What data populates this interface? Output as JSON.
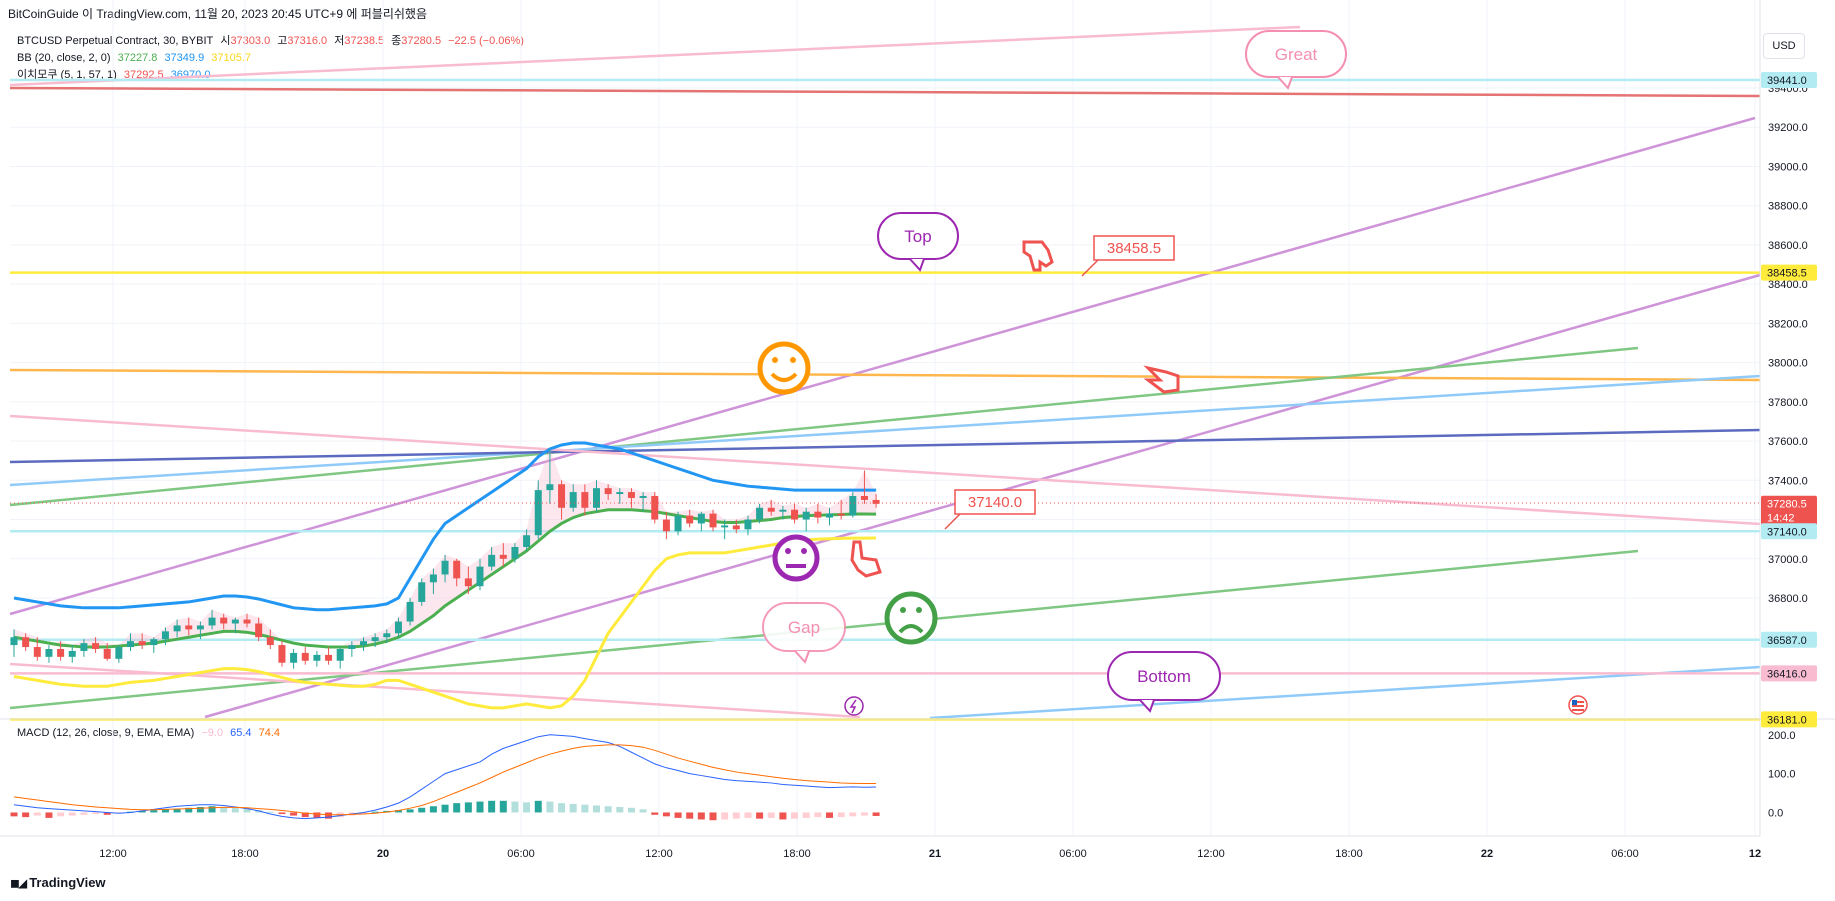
{
  "header": {
    "publish_line": "BitCoinGuide 이 TradingView.com, 11월 20, 2023 20:45 UTC+9 에 퍼블리쉬했음"
  },
  "legend": {
    "symbol": "BTCUSD Perpetual Contract, 30, BYBIT",
    "open_label": "시",
    "open": "37303.0",
    "high_label": "고",
    "high": "37316.0",
    "low_label": "저",
    "low": "37238.5",
    "close_label": "종",
    "close": "37280.5",
    "change": "−22.5 (−0.06%)",
    "bb_label": "BB (20, close, 2, 0)",
    "bb_basis": "37227.8",
    "bb_upper": "37349.9",
    "bb_lower": "37105.7",
    "ichi_label": "이치모쿠 (5, 1, 57, 1)",
    "ichi_a": "37292.5",
    "ichi_b": "36970.0"
  },
  "macd_legend": {
    "label": "MACD (12, 26, close, 9, EMA, EMA)",
    "hist": "−9.0",
    "macd": "65.4",
    "signal": "74.4"
  },
  "currency": "USD",
  "brand": "TradingView",
  "colors": {
    "up": "#26a69a",
    "down": "#ef5350",
    "bb_basis": "#4caf50",
    "bb_upper": "#2196f3",
    "bb_lower": "#ffeb3b",
    "macd": "#2962ff",
    "signal": "#ff6d00",
    "yellow_line": "#ffeb3b",
    "orange_line": "#ff9800",
    "purple_line": "#ba68c8",
    "pink_line": "#f8bbd0"
  },
  "chart_data": {
    "type": "candlestick",
    "interval": "30",
    "price_axis": {
      "min": 36100,
      "max": 39550,
      "ticks": [
        39400,
        39200,
        39000,
        38800,
        38600,
        38400,
        38200,
        38000,
        37800,
        37600,
        37400,
        37200,
        37000,
        36800
      ]
    },
    "time_axis": {
      "labels": [
        "12:00",
        "18:00",
        "20",
        "06:00",
        "12:00",
        "18:00",
        "21",
        "06:00",
        "12:00",
        "18:00",
        "22",
        "06:00",
        "12"
      ]
    },
    "price_labels": [
      {
        "value": 39441.0,
        "text": "39441.0",
        "color": "#b2ebf2",
        "text_color": "#131722"
      },
      {
        "value": 38458.5,
        "text": "38458.5",
        "color": "#ffeb3b",
        "text_color": "#131722"
      },
      {
        "value": 37280.5,
        "text": "37280.5",
        "sub": "14:42",
        "color": "#ef5350",
        "text_color": "#ffffff"
      },
      {
        "value": 37140.0,
        "text": "37140.0",
        "color": "#b2ebf2",
        "text_color": "#131722"
      },
      {
        "value": 36587.0,
        "text": "36587.0",
        "color": "#b2ebf2",
        "text_color": "#131722"
      },
      {
        "value": 36416.0,
        "text": "36416.0",
        "color": "#f8bbd0",
        "text_color": "#131722"
      },
      {
        "value": 36181.0,
        "text": "36181.0",
        "color": "#ffeb3b",
        "text_color": "#131722"
      }
    ],
    "horizontal_lines": [
      {
        "value": 39441.0,
        "color": "#b2ebf2"
      },
      {
        "value": 38458.5,
        "color": "#ffeb3b"
      },
      {
        "value": 37140.0,
        "color": "#b2ebf2"
      },
      {
        "value": 36587.0,
        "color": "#b2ebf2"
      },
      {
        "value": 36416.0,
        "color": "#f8bbd0"
      },
      {
        "value": 36181.0,
        "color": "#ffeb3b"
      }
    ],
    "annotations": [
      {
        "text": "Great",
        "color": "#f48fb1"
      },
      {
        "text": "Top",
        "color": "#9c27b0"
      },
      {
        "text": "Gap",
        "color": "#f48fb1"
      },
      {
        "text": "Bottom",
        "color": "#9c27b0"
      },
      {
        "text": "38458.5",
        "color": "#ef5350"
      },
      {
        "text": "37140.0",
        "color": "#ef5350"
      }
    ],
    "macd_axis": {
      "ticks": [
        200.0,
        100.0,
        0.0
      ],
      "tick_labels": [
        "200.0",
        "100.0",
        "0.0"
      ],
      "min": -40,
      "max": 220
    },
    "candles": [
      {
        "o": 36560,
        "h": 36640,
        "l": 36500,
        "c": 36600
      },
      {
        "o": 36600,
        "h": 36620,
        "l": 36530,
        "c": 36550
      },
      {
        "o": 36550,
        "h": 36600,
        "l": 36480,
        "c": 36500
      },
      {
        "o": 36500,
        "h": 36560,
        "l": 36470,
        "c": 36540
      },
      {
        "o": 36540,
        "h": 36580,
        "l": 36480,
        "c": 36500
      },
      {
        "o": 36500,
        "h": 36560,
        "l": 36470,
        "c": 36530
      },
      {
        "o": 36530,
        "h": 36590,
        "l": 36500,
        "c": 36570
      },
      {
        "o": 36570,
        "h": 36600,
        "l": 36520,
        "c": 36540
      },
      {
        "o": 36540,
        "h": 36570,
        "l": 36480,
        "c": 36490
      },
      {
        "o": 36490,
        "h": 36560,
        "l": 36470,
        "c": 36550
      },
      {
        "o": 36550,
        "h": 36620,
        "l": 36530,
        "c": 36580
      },
      {
        "o": 36580,
        "h": 36620,
        "l": 36540,
        "c": 36560
      },
      {
        "o": 36560,
        "h": 36600,
        "l": 36520,
        "c": 36590
      },
      {
        "o": 36590,
        "h": 36650,
        "l": 36560,
        "c": 36630
      },
      {
        "o": 36630,
        "h": 36690,
        "l": 36600,
        "c": 36660
      },
      {
        "o": 36660,
        "h": 36700,
        "l": 36610,
        "c": 36640
      },
      {
        "o": 36640,
        "h": 36680,
        "l": 36590,
        "c": 36660
      },
      {
        "o": 36660,
        "h": 36740,
        "l": 36640,
        "c": 36700
      },
      {
        "o": 36700,
        "h": 36720,
        "l": 36640,
        "c": 36670
      },
      {
        "o": 36670,
        "h": 36700,
        "l": 36620,
        "c": 36690
      },
      {
        "o": 36690,
        "h": 36720,
        "l": 36650,
        "c": 36670
      },
      {
        "o": 36670,
        "h": 36700,
        "l": 36580,
        "c": 36600
      },
      {
        "o": 36600,
        "h": 36640,
        "l": 36540,
        "c": 36560
      },
      {
        "o": 36560,
        "h": 36580,
        "l": 36450,
        "c": 36470
      },
      {
        "o": 36470,
        "h": 36540,
        "l": 36440,
        "c": 36520
      },
      {
        "o": 36520,
        "h": 36550,
        "l": 36460,
        "c": 36480
      },
      {
        "o": 36480,
        "h": 36530,
        "l": 36450,
        "c": 36510
      },
      {
        "o": 36510,
        "h": 36550,
        "l": 36460,
        "c": 36480
      },
      {
        "o": 36480,
        "h": 36550,
        "l": 36440,
        "c": 36540
      },
      {
        "o": 36540,
        "h": 36580,
        "l": 36500,
        "c": 36560
      },
      {
        "o": 36560,
        "h": 36600,
        "l": 36530,
        "c": 36580
      },
      {
        "o": 36580,
        "h": 36620,
        "l": 36550,
        "c": 36600
      },
      {
        "o": 36600,
        "h": 36640,
        "l": 36570,
        "c": 36620
      },
      {
        "o": 36620,
        "h": 36700,
        "l": 36600,
        "c": 36680
      },
      {
        "o": 36680,
        "h": 36800,
        "l": 36660,
        "c": 36780
      },
      {
        "o": 36780,
        "h": 36900,
        "l": 36760,
        "c": 36880
      },
      {
        "o": 36880,
        "h": 36950,
        "l": 36820,
        "c": 36920
      },
      {
        "o": 36920,
        "h": 37020,
        "l": 36880,
        "c": 36990
      },
      {
        "o": 36990,
        "h": 37000,
        "l": 36860,
        "c": 36900
      },
      {
        "o": 36900,
        "h": 36960,
        "l": 36820,
        "c": 36860
      },
      {
        "o": 36860,
        "h": 37000,
        "l": 36840,
        "c": 36960
      },
      {
        "o": 36960,
        "h": 37060,
        "l": 36940,
        "c": 37020
      },
      {
        "o": 37020,
        "h": 37080,
        "l": 36960,
        "c": 37000
      },
      {
        "o": 37000,
        "h": 37080,
        "l": 36980,
        "c": 37060
      },
      {
        "o": 37060,
        "h": 37150,
        "l": 37040,
        "c": 37120
      },
      {
        "o": 37120,
        "h": 37400,
        "l": 37100,
        "c": 37350
      },
      {
        "o": 37350,
        "h": 37560,
        "l": 37280,
        "c": 37380
      },
      {
        "o": 37380,
        "h": 37400,
        "l": 37200,
        "c": 37260
      },
      {
        "o": 37260,
        "h": 37380,
        "l": 37240,
        "c": 37340
      },
      {
        "o": 37340,
        "h": 37380,
        "l": 37220,
        "c": 37260
      },
      {
        "o": 37260,
        "h": 37400,
        "l": 37240,
        "c": 37360
      },
      {
        "o": 37360,
        "h": 37380,
        "l": 37300,
        "c": 37330
      },
      {
        "o": 37330,
        "h": 37360,
        "l": 37280,
        "c": 37340
      },
      {
        "o": 37340,
        "h": 37360,
        "l": 37260,
        "c": 37310
      },
      {
        "o": 37310,
        "h": 37340,
        "l": 37240,
        "c": 37320
      },
      {
        "o": 37320,
        "h": 37340,
        "l": 37180,
        "c": 37200
      },
      {
        "o": 37200,
        "h": 37240,
        "l": 37100,
        "c": 37140
      },
      {
        "o": 37140,
        "h": 37240,
        "l": 37120,
        "c": 37220
      },
      {
        "o": 37220,
        "h": 37250,
        "l": 37160,
        "c": 37180
      },
      {
        "o": 37180,
        "h": 37240,
        "l": 37140,
        "c": 37230
      },
      {
        "o": 37230,
        "h": 37250,
        "l": 37140,
        "c": 37160
      },
      {
        "o": 37160,
        "h": 37200,
        "l": 37100,
        "c": 37170
      },
      {
        "o": 37170,
        "h": 37200,
        "l": 37130,
        "c": 37150
      },
      {
        "o": 37150,
        "h": 37220,
        "l": 37120,
        "c": 37200
      },
      {
        "o": 37200,
        "h": 37280,
        "l": 37180,
        "c": 37260
      },
      {
        "o": 37260,
        "h": 37300,
        "l": 37220,
        "c": 37240
      },
      {
        "o": 37240,
        "h": 37270,
        "l": 37200,
        "c": 37250
      },
      {
        "o": 37250,
        "h": 37280,
        "l": 37180,
        "c": 37200
      },
      {
        "o": 37200,
        "h": 37260,
        "l": 37140,
        "c": 37240
      },
      {
        "o": 37240,
        "h": 37280,
        "l": 37180,
        "c": 37210
      },
      {
        "o": 37210,
        "h": 37260,
        "l": 37170,
        "c": 37230
      },
      {
        "o": 37230,
        "h": 37300,
        "l": 37200,
        "c": 37220
      },
      {
        "o": 37220,
        "h": 37340,
        "l": 37210,
        "c": 37320
      },
      {
        "o": 37320,
        "h": 37450,
        "l": 37280,
        "c": 37300
      },
      {
        "o": 37300,
        "h": 37330,
        "l": 37260,
        "c": 37280
      }
    ],
    "macd_hist": [
      -10,
      -12,
      -8,
      -14,
      -10,
      -8,
      -6,
      -4,
      -6,
      -2,
      2,
      4,
      6,
      8,
      10,
      12,
      14,
      16,
      14,
      12,
      10,
      6,
      2,
      -4,
      -8,
      -12,
      -14,
      -16,
      -12,
      -8,
      -4,
      2,
      4,
      6,
      8,
      12,
      16,
      20,
      24,
      26,
      28,
      30,
      30,
      28,
      26,
      30,
      28,
      24,
      22,
      20,
      18,
      16,
      14,
      12,
      8,
      -6,
      -10,
      -14,
      -16,
      -18,
      -20,
      -18,
      -16,
      -14,
      -16,
      -14,
      -18,
      -16,
      -14,
      -12,
      -14,
      -12,
      -10,
      -8,
      -9
    ],
    "macd_line": [
      20,
      16,
      12,
      10,
      8,
      6,
      4,
      2,
      0,
      -2,
      0,
      4,
      8,
      12,
      16,
      18,
      20,
      20,
      18,
      14,
      10,
      4,
      -4,
      -10,
      -14,
      -16,
      -14,
      -12,
      -8,
      -4,
      0,
      6,
      14,
      24,
      40,
      60,
      80,
      100,
      110,
      120,
      130,
      150,
      165,
      175,
      185,
      195,
      200,
      198,
      196,
      190,
      185,
      180,
      170,
      155,
      140,
      125,
      115,
      108,
      100,
      95,
      90,
      85,
      82,
      80,
      78,
      76,
      72,
      70,
      68,
      66,
      64,
      65,
      66,
      65,
      65.4
    ],
    "signal_line": [
      40,
      36,
      32,
      28,
      24,
      20,
      17,
      14,
      12,
      10,
      8,
      7,
      7,
      8,
      9,
      10,
      11,
      12,
      13,
      13,
      12,
      10,
      8,
      5,
      2,
      -2,
      -4,
      -6,
      -6,
      -5,
      -4,
      -2,
      1,
      5,
      11,
      18,
      28,
      40,
      52,
      64,
      76,
      90,
      104,
      116,
      128,
      140,
      150,
      158,
      165,
      170,
      172,
      174,
      174,
      172,
      168,
      160,
      150,
      140,
      132,
      124,
      116,
      110,
      104,
      100,
      96,
      92,
      88,
      85,
      82,
      80,
      78,
      76,
      75,
      74.5,
      74.4
    ],
    "bb_basis_line": [
      36600,
      36590,
      36580,
      36570,
      36560,
      36555,
      36550,
      36550,
      36550,
      36555,
      36560,
      36565,
      36570,
      36580,
      36590,
      36600,
      36610,
      36620,
      36630,
      36630,
      36625,
      36615,
      36600,
      36585,
      36570,
      36560,
      36555,
      36550,
      36550,
      36550,
      36555,
      36565,
      36580,
      36600,
      36630,
      36670,
      36710,
      36760,
      36800,
      36840,
      36880,
      36920,
      36960,
      37000,
      37040,
      37090,
      37140,
      37180,
      37210,
      37230,
      37240,
      37250,
      37250,
      37250,
      37245,
      37240,
      37230,
      37220,
      37210,
      37200,
      37190,
      37185,
      37185,
      37190,
      37195,
      37200,
      37210,
      37215,
      37220,
      37222,
      37224,
      37226,
      37228,
      37228,
      37227.8
    ],
    "bb_upper_line": [
      36800,
      36790,
      36780,
      36770,
      36760,
      36755,
      36750,
      36750,
      36750,
      36750,
      36755,
      36760,
      36765,
      36770,
      36775,
      36780,
      36790,
      36800,
      36810,
      36810,
      36805,
      36795,
      36780,
      36765,
      36750,
      36745,
      36740,
      36740,
      36745,
      36750,
      36755,
      36760,
      36770,
      36800,
      36900,
      37000,
      37100,
      37180,
      37220,
      37260,
      37300,
      37340,
      37380,
      37420,
      37460,
      37520,
      37560,
      37580,
      37590,
      37590,
      37580,
      37570,
      37560,
      37540,
      37520,
      37500,
      37480,
      37460,
      37440,
      37420,
      37400,
      37390,
      37380,
      37370,
      37365,
      37360,
      37355,
      37350,
      37350,
      37350,
      37350,
      37350,
      37350,
      37350,
      37349.9
    ],
    "bb_lower_line": [
      36400,
      36390,
      36380,
      36370,
      36360,
      36355,
      36350,
      36350,
      36350,
      36360,
      36370,
      36375,
      36380,
      36390,
      36400,
      36410,
      36420,
      36430,
      36440,
      36440,
      36435,
      36425,
      36410,
      36395,
      36380,
      36370,
      36365,
      36360,
      36355,
      36350,
      36350,
      36360,
      36380,
      36380,
      36360,
      36340,
      36320,
      36300,
      36280,
      36260,
      36250,
      36240,
      36240,
      36250,
      36260,
      36250,
      36240,
      36250,
      36300,
      36380,
      36500,
      36620,
      36700,
      36780,
      36860,
      36940,
      37000,
      37020,
      37030,
      37030,
      37030,
      37030,
      37040,
      37050,
      37060,
      37070,
      37080,
      37090,
      37095,
      37100,
      37102,
      37104,
      37105,
      37105,
      37105.7
    ]
  }
}
